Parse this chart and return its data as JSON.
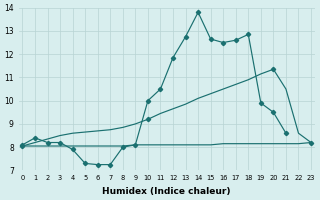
{
  "x": [
    0,
    1,
    2,
    3,
    4,
    5,
    6,
    7,
    8,
    9,
    10,
    11,
    12,
    13,
    14,
    15,
    16,
    17,
    18,
    19,
    20,
    21,
    22,
    23
  ],
  "line_main": [
    8.1,
    8.4,
    8.2,
    8.2,
    7.9,
    7.3,
    7.25,
    7.25,
    8.0,
    8.1,
    10.0,
    10.5,
    11.85,
    12.75,
    13.8,
    12.65,
    12.5,
    12.6,
    12.85,
    9.9,
    9.5,
    8.6,
    null,
    null
  ],
  "line_flat": [
    8.05,
    8.05,
    8.05,
    8.05,
    8.05,
    8.05,
    8.05,
    8.05,
    8.05,
    8.1,
    8.1,
    8.1,
    8.1,
    8.1,
    8.1,
    8.1,
    8.15,
    8.15,
    8.15,
    8.15,
    8.15,
    8.15,
    8.15,
    8.2
  ],
  "line_diag": [
    8.05,
    8.2,
    8.35,
    8.5,
    8.6,
    8.65,
    8.7,
    8.75,
    8.85,
    9.0,
    9.2,
    9.45,
    9.65,
    9.85,
    10.1,
    10.3,
    10.5,
    10.7,
    10.9,
    11.15,
    11.35,
    10.5,
    8.6,
    8.2
  ],
  "color": "#1a7070",
  "bg_color": "#d8eeee",
  "grid_color": "#b8d4d4",
  "xlabel": "Humidex (Indice chaleur)",
  "ylim": [
    7,
    14
  ],
  "xlim": [
    -0.3,
    23.3
  ],
  "yticks": [
    7,
    8,
    9,
    10,
    11,
    12,
    13,
    14
  ],
  "xticks": [
    0,
    1,
    2,
    3,
    4,
    5,
    6,
    7,
    8,
    9,
    10,
    11,
    12,
    13,
    14,
    15,
    16,
    17,
    18,
    19,
    20,
    21,
    22,
    23
  ]
}
